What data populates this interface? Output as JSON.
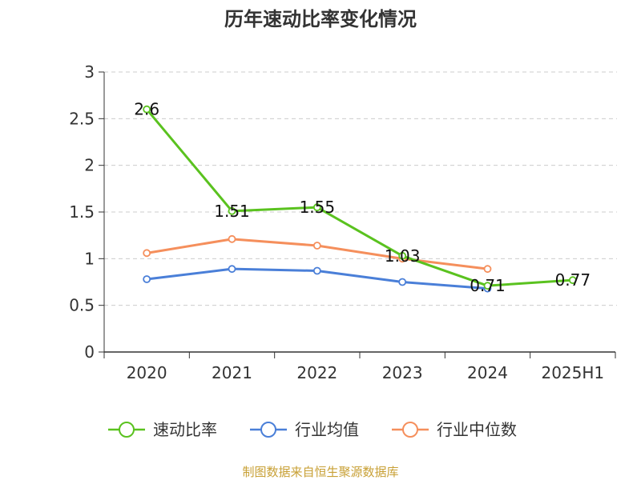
{
  "title": "历年速动比率变化情况",
  "source": "制图数据来自恒生聚源数据库",
  "chart_data": {
    "type": "line",
    "categories": [
      "2020",
      "2021",
      "2022",
      "2023",
      "2024",
      "2025H1"
    ],
    "ylim": [
      0,
      3
    ],
    "yticks": [
      "0",
      "0.5",
      "1",
      "1.5",
      "2",
      "2.5",
      "3"
    ],
    "grid": true,
    "legend_position": "bottom",
    "series": [
      {
        "key": "quick-ratio",
        "name": "速动比率",
        "color": "#5ac21f",
        "values": [
          2.6,
          1.51,
          1.55,
          1.03,
          0.71,
          0.77
        ],
        "labels": [
          "2.6",
          "1.51",
          "1.55",
          "1.03",
          "0.71",
          "0.77"
        ]
      },
      {
        "key": "industry-mean",
        "name": "行业均值",
        "color": "#4a7fd8",
        "values": [
          0.78,
          0.89,
          0.87,
          0.75,
          0.68,
          null
        ]
      },
      {
        "key": "industry-median",
        "name": "行业中位数",
        "color": "#f58f5c",
        "values": [
          1.06,
          1.21,
          1.14,
          1.0,
          0.89,
          null
        ]
      }
    ]
  }
}
